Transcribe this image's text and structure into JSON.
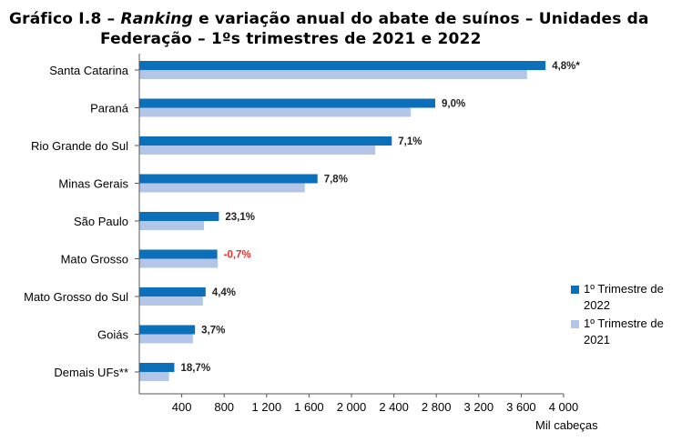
{
  "title": {
    "prefix": "Gráfico I.8 – ",
    "emphasis": "Ranking",
    "rest_line1": " e variação anual do abate de suínos – Unidades da",
    "line2": "Federação – 1ºs trimestres de 2021 e 2022"
  },
  "colors": {
    "series_2022": "#0b6fba",
    "series_2021": "#b4c6e7",
    "negative_label": "#e03030"
  },
  "unit_label": "Mil cabeças",
  "chart_data": {
    "type": "bar",
    "orientation": "horizontal",
    "categories": [
      "Santa Catarina",
      "Paraná",
      "Rio Grande do Sul",
      "Minas Gerais",
      "São Paulo",
      "Mato Grosso",
      "Mato Grosso do Sul",
      "Goiás",
      "Demais UFs**"
    ],
    "series": [
      {
        "name": "1º Trimestre de 2022",
        "values": [
          3830,
          2790,
          2380,
          1680,
          750,
          735,
          625,
          525,
          330
        ]
      },
      {
        "name": "1º Trimestre de 2021",
        "values": [
          3655,
          2560,
          2225,
          1560,
          610,
          740,
          600,
          505,
          280
        ]
      }
    ],
    "data_labels": [
      "4,8%*",
      "9,0%",
      "7,1%",
      "7,8%",
      "23,1%",
      "-0,7%",
      "4,4%",
      "3,7%",
      "18,7%"
    ],
    "negative_label_index": 5,
    "xlim": [
      0,
      4000
    ],
    "x_ticks": [
      400,
      800,
      1200,
      1600,
      2000,
      2400,
      2800,
      3200,
      3600,
      4000
    ],
    "x_tick_labels": [
      "400",
      "800",
      "1 200",
      "1 600",
      "2 000",
      "2 400",
      "2 800",
      "3 200",
      "3 600",
      "4 000"
    ],
    "grid": false,
    "legend_position": "right"
  }
}
